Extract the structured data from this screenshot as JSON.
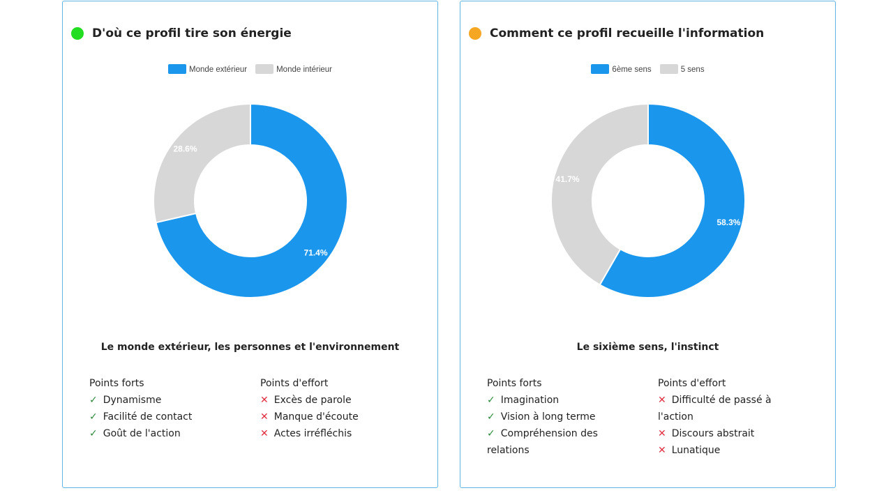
{
  "colors": {
    "blue": "#1a96ec",
    "gray": "#d7d7d7",
    "green": "#22dd22",
    "orange": "#f5a623",
    "check": "#2e8b3a",
    "cross": "#e03040"
  },
  "cards": [
    {
      "title": "D'où ce profil tire son énergie",
      "dot": "#22dd22",
      "description": "Le monde extérieur, les personnes et l'environnement",
      "strengths_title": "Points forts",
      "strengths": [
        "Dynamisme",
        "Facilité de contact",
        "Goût de l'action"
      ],
      "efforts_title": "Points d'effort",
      "efforts": [
        "Excès de parole",
        "Manque d'écoute",
        "Actes irréfléchis"
      ]
    },
    {
      "title": "Comment ce profil recueille l'information",
      "dot": "#f5a623",
      "description": "Le sixième sens, l'instinct",
      "strengths_title": "Points forts",
      "strengths": [
        "Imagination",
        "Vision à long terme",
        "Compréhension des relations"
      ],
      "efforts_title": "Points d'effort",
      "efforts": [
        "Difficulté de passé à l'action",
        "Discours abstrait",
        "Lunatique"
      ]
    }
  ],
  "chart_data": [
    {
      "type": "pie",
      "donut": true,
      "legend": "top",
      "categories": [
        "Monde extérieur",
        "Monde intérieur"
      ],
      "values": [
        71.4,
        28.6
      ],
      "labels": [
        "71.4%",
        "28.6%"
      ],
      "colors": [
        "#1a96ec",
        "#d7d7d7"
      ]
    },
    {
      "type": "pie",
      "donut": true,
      "legend": "top",
      "categories": [
        "6ème sens",
        "5 sens"
      ],
      "values": [
        58.3,
        41.7
      ],
      "labels": [
        "58.3%",
        "41.7%"
      ],
      "colors": [
        "#1a96ec",
        "#d7d7d7"
      ]
    }
  ]
}
